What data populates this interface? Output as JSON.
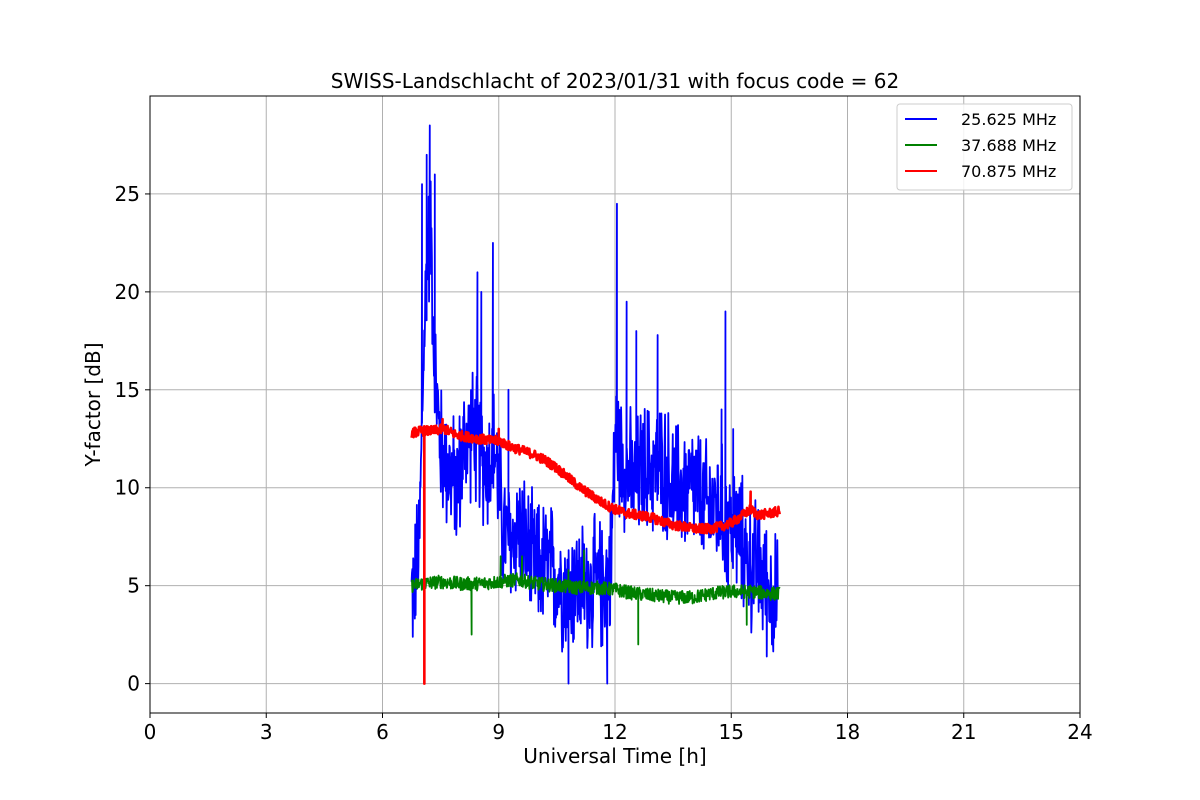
{
  "chart_data": {
    "type": "line",
    "title": "SWISS-Landschlacht of 2023/01/31 with focus code = 62",
    "xlabel": "Universal Time [h]",
    "ylabel": "Y-factor [dB]",
    "xlim": [
      0,
      24
    ],
    "ylim": [
      -1.5,
      30
    ],
    "xticks": [
      0,
      3,
      6,
      9,
      12,
      15,
      18,
      21,
      24
    ],
    "yticks": [
      0,
      5,
      10,
      15,
      20,
      25
    ],
    "grid": true,
    "legend_position": "top-right",
    "series": [
      {
        "name": "25.625 MHz",
        "color": "#0000ff",
        "noise": 2.5,
        "x": [
          6.75,
          6.85,
          6.95,
          7.05,
          7.15,
          7.25,
          7.35,
          7.5,
          7.7,
          7.9,
          8.1,
          8.3,
          8.5,
          8.7,
          8.9,
          9.0,
          9.1,
          9.3,
          9.5,
          9.7,
          9.9,
          10.1,
          10.3,
          10.5,
          10.7,
          10.9,
          11.1,
          11.3,
          11.5,
          11.7,
          11.9,
          12.0,
          12.1,
          12.3,
          12.5,
          12.7,
          12.9,
          13.1,
          13.3,
          13.5,
          13.7,
          13.9,
          14.1,
          14.3,
          14.5,
          14.7,
          14.9,
          15.1,
          15.3,
          15.5,
          15.7,
          15.9,
          16.1,
          16.2
        ],
        "y": [
          4.5,
          5.5,
          7,
          16,
          22,
          23,
          16,
          12,
          11,
          10,
          12,
          13,
          12,
          11,
          12,
          10,
          8,
          7,
          8,
          7,
          6,
          6,
          6,
          5.5,
          5,
          5,
          5,
          5,
          5,
          5,
          6,
          13,
          12,
          11,
          10,
          11,
          11,
          11,
          11,
          10,
          10,
          10,
          10,
          9,
          9,
          9,
          8,
          8,
          7,
          6,
          6,
          5,
          4.5,
          4
        ],
        "spikes": [
          [
            7.02,
            25.5
          ],
          [
            7.14,
            27
          ],
          [
            7.22,
            28.5
          ],
          [
            7.35,
            26
          ],
          [
            8.45,
            21
          ],
          [
            8.55,
            20
          ],
          [
            8.85,
            22.5
          ],
          [
            9.25,
            15
          ],
          [
            10.8,
            0
          ],
          [
            11.8,
            0
          ],
          [
            12.05,
            24.5
          ],
          [
            12.3,
            19.5
          ],
          [
            12.55,
            18
          ],
          [
            13.1,
            17.8
          ],
          [
            14.75,
            14
          ],
          [
            14.85,
            19
          ],
          [
            15.05,
            13
          ],
          [
            16.05,
            2
          ]
        ]
      },
      {
        "name": "37.688 MHz",
        "color": "#008000",
        "noise": 0.35,
        "x": [
          6.75,
          7.0,
          7.5,
          8.0,
          8.5,
          9.0,
          9.5,
          10.0,
          10.5,
          11.0,
          11.5,
          12.0,
          12.5,
          13.0,
          13.5,
          14.0,
          14.5,
          15.0,
          15.5,
          16.0,
          16.25
        ],
        "y": [
          5.0,
          5.1,
          5.2,
          5.1,
          5.1,
          5.2,
          5.3,
          5.1,
          5.0,
          4.9,
          4.9,
          4.8,
          4.6,
          4.5,
          4.4,
          4.4,
          4.6,
          4.7,
          4.7,
          4.6,
          4.6
        ],
        "spikes": [
          [
            8.3,
            2.5
          ],
          [
            9.05,
            6.5
          ],
          [
            9.6,
            6.5
          ],
          [
            10.8,
            5.8
          ],
          [
            11.2,
            6.8
          ],
          [
            12.6,
            2.0
          ],
          [
            15.4,
            3.0
          ]
        ]
      },
      {
        "name": "70.875 MHz",
        "color": "#ff0000",
        "noise": 0.25,
        "x": [
          6.75,
          7.0,
          7.3,
          7.6,
          7.9,
          8.2,
          8.5,
          8.8,
          9.0,
          9.3,
          9.6,
          9.9,
          10.2,
          10.5,
          10.8,
          11.1,
          11.4,
          11.7,
          12.0,
          12.3,
          12.6,
          12.9,
          13.2,
          13.5,
          13.8,
          14.1,
          14.4,
          14.7,
          15.0,
          15.3,
          15.5,
          15.7,
          16.0,
          16.25
        ],
        "y": [
          12.8,
          12.9,
          12.9,
          13.0,
          12.7,
          12.6,
          12.5,
          12.4,
          12.4,
          12.1,
          11.9,
          11.7,
          11.4,
          11.0,
          10.5,
          10.0,
          9.6,
          9.2,
          8.9,
          8.7,
          8.6,
          8.5,
          8.3,
          8.1,
          8.0,
          7.9,
          7.9,
          8.0,
          8.2,
          8.6,
          8.9,
          8.6,
          8.7,
          8.8
        ],
        "spikes": [
          [
            7.08,
            0
          ],
          [
            7.55,
            13.5
          ],
          [
            9.0,
            13.0
          ],
          [
            15.5,
            9.8
          ]
        ]
      }
    ]
  }
}
